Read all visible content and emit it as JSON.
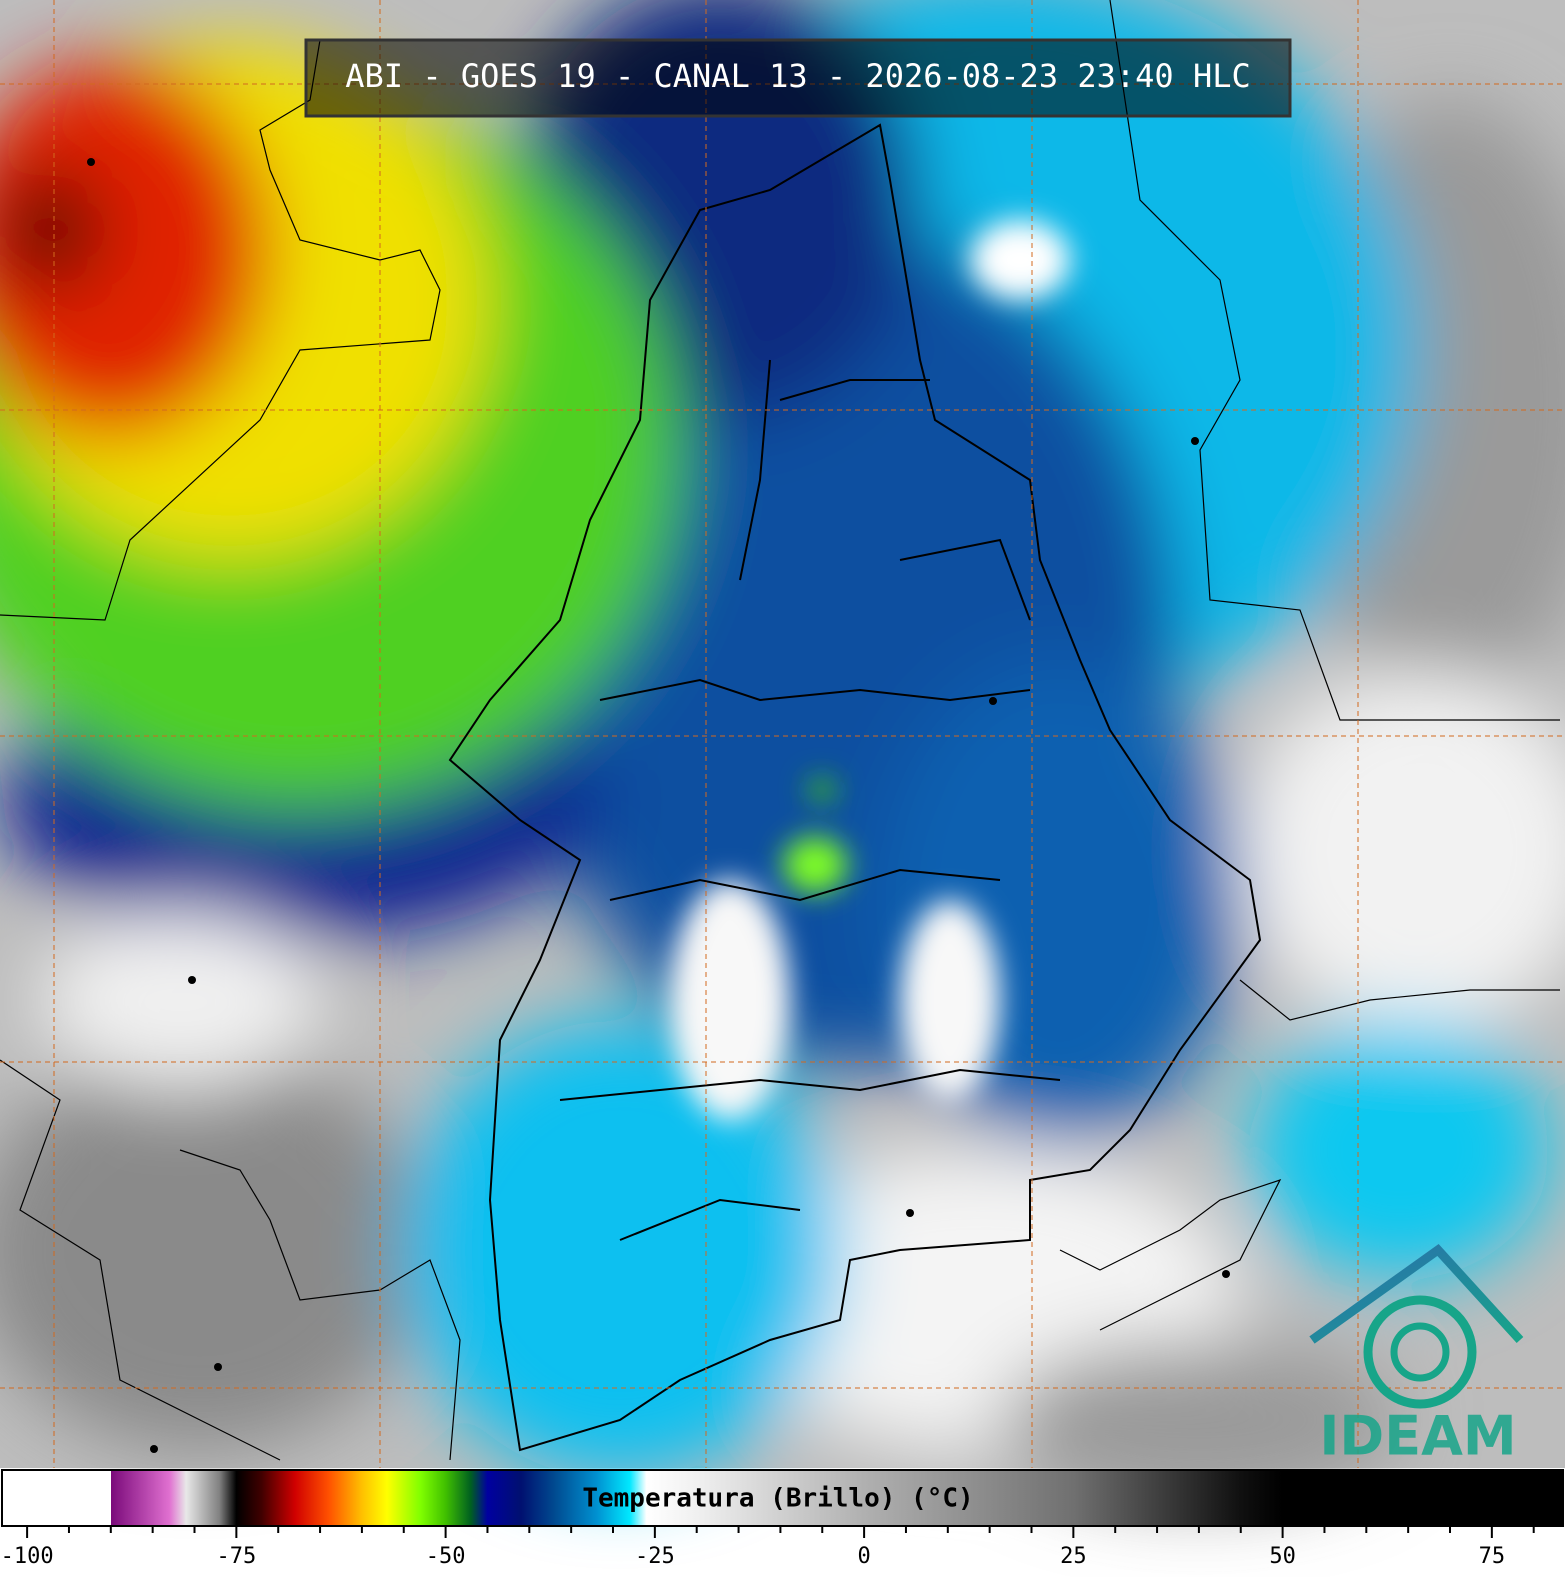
{
  "title": "ABI - GOES 19 - CANAL 13 - 2026-08-23 23:40 HLC",
  "colorbar": {
    "label": "Temperatura (Brillo) (°C)",
    "range": [
      -103,
      83.5
    ],
    "ticks": [
      -100,
      -75,
      -50,
      -25,
      0,
      25,
      50,
      75
    ],
    "minor_ticks": [
      -95,
      -90,
      -85,
      -80,
      -70,
      -65,
      -60,
      -55,
      -45,
      -40,
      -35,
      -30,
      -20,
      -15,
      -10,
      -5,
      5,
      10,
      15,
      20,
      30,
      35,
      40,
      45,
      55,
      60,
      65,
      70,
      80
    ],
    "colorscale": [
      [
        -103,
        "#ffffff"
      ],
      [
        -90,
        "#ffffff"
      ],
      [
        -90,
        "#7a0a7a"
      ],
      [
        -83,
        "#e070d0"
      ],
      [
        -81,
        "#e8e8e8"
      ],
      [
        -77,
        "#808080"
      ],
      [
        -75,
        "#000000"
      ],
      [
        -72,
        "#400000"
      ],
      [
        -68,
        "#d00000"
      ],
      [
        -64,
        "#ff5000"
      ],
      [
        -60,
        "#ffc000"
      ],
      [
        -57,
        "#ffff00"
      ],
      [
        -53,
        "#80ff00"
      ],
      [
        -50,
        "#40c000"
      ],
      [
        -47,
        "#006020"
      ],
      [
        -45,
        "#0000a0"
      ],
      [
        -41,
        "#001070"
      ],
      [
        -37,
        "#004a90"
      ],
      [
        -32,
        "#0090d0"
      ],
      [
        -28,
        "#00e8ff"
      ],
      [
        -26,
        "#ffffff"
      ],
      [
        -20,
        "#f0f0f0"
      ],
      [
        0,
        "#b0b0b0"
      ],
      [
        25,
        "#707070"
      ],
      [
        45,
        "#101010"
      ],
      [
        50,
        "#000000"
      ],
      [
        83.5,
        "#000000"
      ]
    ]
  },
  "logo": "IDEAM"
}
